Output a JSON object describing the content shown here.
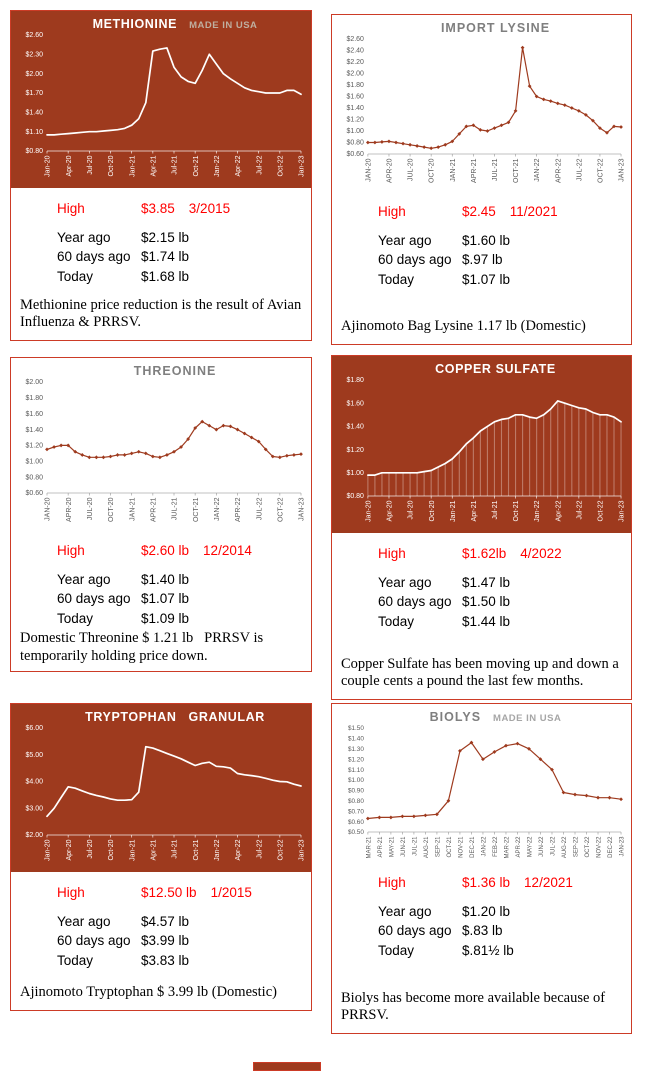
{
  "colors": {
    "maroon": "#9e3a1e",
    "panel_border": "#cc3b26",
    "high_red": "#ff0000",
    "title_gray": "#7f7f7f",
    "axis_gray": "#595959",
    "subtitle_on_dark": "#bfae9f",
    "subtitle_on_light": "#a6a6a6"
  },
  "panels": [
    {
      "name": "Methionine",
      "high": {
        "label": "High",
        "value": "$3.85",
        "date": "3/2015"
      },
      "rows": [
        {
          "label": "Year ago",
          "value": "$2.15 lb"
        },
        {
          "label": "60 days ago",
          "value": "$1.74 lb"
        },
        {
          "label": "Today",
          "value": "$1.68 lb"
        }
      ],
      "caption": "Methionine price reduction is the result of Avian Influenza & PRRSV."
    },
    {
      "name": "Import Lysine",
      "high": {
        "label": "High",
        "value": "$2.45",
        "date": "11/2021"
      },
      "rows": [
        {
          "label": "Year ago",
          "value": "$1.60 lb"
        },
        {
          "label": "60 days ago",
          "value": "$.97 lb"
        },
        {
          "label": "Today",
          "value": "$1.07 lb"
        }
      ],
      "caption": "Ajinomoto Bag Lysine 1.17 lb (Domestic)"
    },
    {
      "name": "Threonine",
      "high": {
        "label": "High",
        "value": "$2.60 lb",
        "date": "12/2014"
      },
      "rows": [
        {
          "label": "Year ago",
          "value": "$1.40 lb"
        },
        {
          "label": "60 days ago",
          "value": "$1.07 lb"
        },
        {
          "label": "Today",
          "value": "$1.09 lb"
        }
      ],
      "caption": "Domestic Threonine $ 1.21 lb   PRRSV is temporarily holding price down."
    },
    {
      "name": "Copper Sulfate",
      "high": {
        "label": "High",
        "value": "$1.62lb",
        "date": "4/2022"
      },
      "rows": [
        {
          "label": "Year ago",
          "value": "$1.47 lb"
        },
        {
          "label": "60 days ago",
          "value": "$1.50 lb"
        },
        {
          "label": "Today",
          "value": "$1.44 lb"
        }
      ],
      "caption": "Copper Sulfate has been moving up and down a couple cents a pound the last few months."
    },
    {
      "name": "Tryptophan Granular",
      "high": {
        "label": "High",
        "value": "$12.50 lb",
        "date": "1/2015"
      },
      "rows": [
        {
          "label": "Year ago",
          "value": "$4.57 lb"
        },
        {
          "label": "60 days ago",
          "value": "$3.99 lb"
        },
        {
          "label": "Today",
          "value": "$3.83 lb"
        }
      ],
      "caption": "Ajinomoto Tryptophan $ 3.99 lb (Domestic)"
    },
    {
      "name": "Biolys",
      "high": {
        "label": "High",
        "value": "$1.36 lb",
        "date": "12/2021"
      },
      "rows": [
        {
          "label": "Year ago",
          "value": "$1.20 lb"
        },
        {
          "label": "60 days ago",
          "value": "$.83 lb"
        },
        {
          "label": "Today",
          "value": "$.81½ lb"
        }
      ],
      "caption": "Biolys has become more available because of PRRSV."
    }
  ],
  "chart_data": [
    {
      "type": "line",
      "style": "dark",
      "markers": false,
      "drop_lines": false,
      "title": "METHIONINE",
      "subtitle": "MADE IN USA",
      "x": [
        "Jan-20",
        "Apr-20",
        "Jul-20",
        "Oct-20",
        "Jan-21",
        "Apr-21",
        "Jul-21",
        "Oct-21",
        "Jan-22",
        "Apr-22",
        "Jul-22",
        "Oct-22",
        "Jan-23"
      ],
      "label_step": 3,
      "values": [
        1.05,
        1.05,
        1.06,
        1.07,
        1.08,
        1.09,
        1.1,
        1.1,
        1.11,
        1.12,
        1.13,
        1.15,
        1.2,
        1.3,
        1.55,
        2.35,
        2.38,
        2.4,
        2.1,
        1.95,
        1.88,
        1.85,
        2.05,
        2.3,
        2.15,
        2.0,
        1.92,
        1.85,
        1.78,
        1.74,
        1.72,
        1.7,
        1.7,
        1.7,
        1.74,
        1.74,
        1.68
      ],
      "ylim": [
        0.8,
        2.6
      ],
      "yticks": [
        0.8,
        1.1,
        1.4,
        1.7,
        2.0,
        2.3,
        2.6
      ],
      "ytick_labels": [
        "$0.80",
        "$1.10",
        "$1.40",
        "$1.70",
        "$2.00",
        "$2.30",
        "$2.60"
      ]
    },
    {
      "type": "line",
      "style": "light",
      "markers": true,
      "drop_lines": false,
      "title": "IMPORT LYSINE",
      "subtitle": "",
      "x": [
        "JAN-20",
        "APR-20",
        "JUL-20",
        "OCT-20",
        "JAN-21",
        "APR-21",
        "JUL-21",
        "OCT-21",
        "JAN-22",
        "APR-22",
        "JUL-22",
        "OCT-22",
        "JAN-23"
      ],
      "label_step": 3,
      "values": [
        0.8,
        0.8,
        0.81,
        0.82,
        0.8,
        0.78,
        0.76,
        0.74,
        0.72,
        0.7,
        0.72,
        0.76,
        0.82,
        0.95,
        1.08,
        1.1,
        1.02,
        1.0,
        1.05,
        1.1,
        1.15,
        1.35,
        2.45,
        1.78,
        1.6,
        1.55,
        1.52,
        1.48,
        1.45,
        1.4,
        1.35,
        1.28,
        1.18,
        1.05,
        0.97,
        1.08,
        1.07
      ],
      "ylim": [
        0.6,
        2.6
      ],
      "yticks": [
        0.6,
        0.8,
        1.0,
        1.2,
        1.4,
        1.6,
        1.8,
        2.0,
        2.2,
        2.4,
        2.6
      ],
      "ytick_labels": [
        "$0.60",
        "$0.80",
        "$1.00",
        "$1.20",
        "$1.40",
        "$1.60",
        "$1.80",
        "$2.00",
        "$2.20",
        "$2.40",
        "$2.60"
      ]
    },
    {
      "type": "line",
      "style": "light",
      "markers": true,
      "drop_lines": false,
      "title": "THREONINE",
      "subtitle": "",
      "x": [
        "JAN-20",
        "APR-20",
        "JUL-20",
        "OCT-20",
        "JAN-21",
        "APR-21",
        "JUL-21",
        "OCT-21",
        "JAN-22",
        "APR-22",
        "JUL-22",
        "OCT-22",
        "JAN-23"
      ],
      "label_step": 3,
      "values": [
        1.15,
        1.18,
        1.2,
        1.2,
        1.12,
        1.08,
        1.05,
        1.05,
        1.05,
        1.06,
        1.08,
        1.08,
        1.1,
        1.12,
        1.1,
        1.06,
        1.05,
        1.08,
        1.12,
        1.18,
        1.28,
        1.42,
        1.5,
        1.45,
        1.4,
        1.45,
        1.44,
        1.4,
        1.35,
        1.3,
        1.25,
        1.15,
        1.06,
        1.05,
        1.07,
        1.08,
        1.09
      ],
      "ylim": [
        0.6,
        2.0
      ],
      "yticks": [
        0.6,
        0.8,
        1.0,
        1.2,
        1.4,
        1.6,
        1.8,
        2.0
      ],
      "ytick_labels": [
        "$0.60",
        "$0.80",
        "$1.00",
        "$1.20",
        "$1.40",
        "$1.60",
        "$1.80",
        "$2.00"
      ]
    },
    {
      "type": "line",
      "style": "dark",
      "markers": false,
      "drop_lines": true,
      "title": "COPPER SULFATE",
      "subtitle": "",
      "x": [
        "Jan-20",
        "Apr-20",
        "Jul-20",
        "Oct-20",
        "Jan-21",
        "Apr-21",
        "Jul-21",
        "Oct-21",
        "Jan-22",
        "Apr-22",
        "Jul-22",
        "Oct-22",
        "Jan-23"
      ],
      "label_step": 3,
      "values": [
        0.98,
        0.98,
        1.0,
        1.0,
        1.0,
        1.0,
        1.0,
        1.0,
        1.01,
        1.02,
        1.05,
        1.08,
        1.12,
        1.18,
        1.25,
        1.3,
        1.36,
        1.4,
        1.44,
        1.46,
        1.47,
        1.5,
        1.5,
        1.48,
        1.47,
        1.5,
        1.55,
        1.62,
        1.6,
        1.58,
        1.56,
        1.55,
        1.52,
        1.5,
        1.5,
        1.48,
        1.44
      ],
      "ylim": [
        0.8,
        1.8
      ],
      "yticks": [
        0.8,
        1.0,
        1.2,
        1.4,
        1.6,
        1.8
      ],
      "ytick_labels": [
        "$0.80",
        "$1.00",
        "$1.20",
        "$1.40",
        "$1.60",
        "$1.80"
      ]
    },
    {
      "type": "line",
      "style": "dark",
      "markers": false,
      "drop_lines": false,
      "title": "TRYPTOPHAN",
      "subtitle": "GRANULAR",
      "x": [
        "Jan-20",
        "Apr-20",
        "Jul-20",
        "Oct-20",
        "Jan-21",
        "Apr-21",
        "Jul-21",
        "Oct-21",
        "Jan-22",
        "Apr-22",
        "Jul-22",
        "Oct-22",
        "Jan-23"
      ],
      "label_step": 3,
      "values": [
        2.7,
        3.0,
        3.4,
        3.8,
        3.75,
        3.65,
        3.55,
        3.48,
        3.42,
        3.35,
        3.3,
        3.3,
        3.32,
        3.6,
        5.3,
        5.25,
        5.15,
        5.05,
        4.95,
        4.85,
        4.72,
        4.6,
        4.68,
        4.72,
        4.57,
        4.55,
        4.5,
        4.3,
        4.25,
        4.22,
        4.18,
        4.12,
        4.05,
        4.0,
        3.99,
        3.9,
        3.83
      ],
      "ylim": [
        2.0,
        6.0
      ],
      "yticks": [
        2.0,
        3.0,
        4.0,
        5.0,
        6.0
      ],
      "ytick_labels": [
        "$2.00",
        "$3.00",
        "$4.00",
        "$5.00",
        "$6.00"
      ]
    },
    {
      "type": "line",
      "style": "light",
      "markers": true,
      "drop_lines": false,
      "title": "BIOLYS",
      "subtitle": "MADE IN USA",
      "x": [
        "MAR-21",
        "APR-21",
        "MAY-21",
        "JUN-21",
        "JUL-21",
        "AUG-21",
        "SEP-21",
        "OCT-21",
        "NOV-21",
        "DEC-21",
        "JAN-22",
        "FEB-22",
        "MAR-22",
        "APR-22",
        "MAY-22",
        "JUN-22",
        "JUL-22",
        "AUG-22",
        "SEP-22",
        "OCT-22",
        "NOV-22",
        "DEC-22",
        "JAN-23"
      ],
      "label_step": 1,
      "x_font": 6,
      "y_font": 6.4,
      "values": [
        0.63,
        0.64,
        0.64,
        0.65,
        0.65,
        0.66,
        0.67,
        0.8,
        1.28,
        1.36,
        1.2,
        1.27,
        1.33,
        1.35,
        1.3,
        1.2,
        1.1,
        0.88,
        0.86,
        0.85,
        0.83,
        0.83,
        0.815
      ],
      "ylim": [
        0.5,
        1.5
      ],
      "yticks": [
        0.5,
        0.6,
        0.7,
        0.8,
        0.9,
        1.0,
        1.1,
        1.2,
        1.3,
        1.4,
        1.5
      ],
      "ytick_labels": [
        "$0.50",
        "$0.60",
        "$0.70",
        "$0.80",
        "$0.90",
        "$1.00",
        "$1.10",
        "$1.20",
        "$1.30",
        "$1.40",
        "$1.50"
      ]
    }
  ]
}
